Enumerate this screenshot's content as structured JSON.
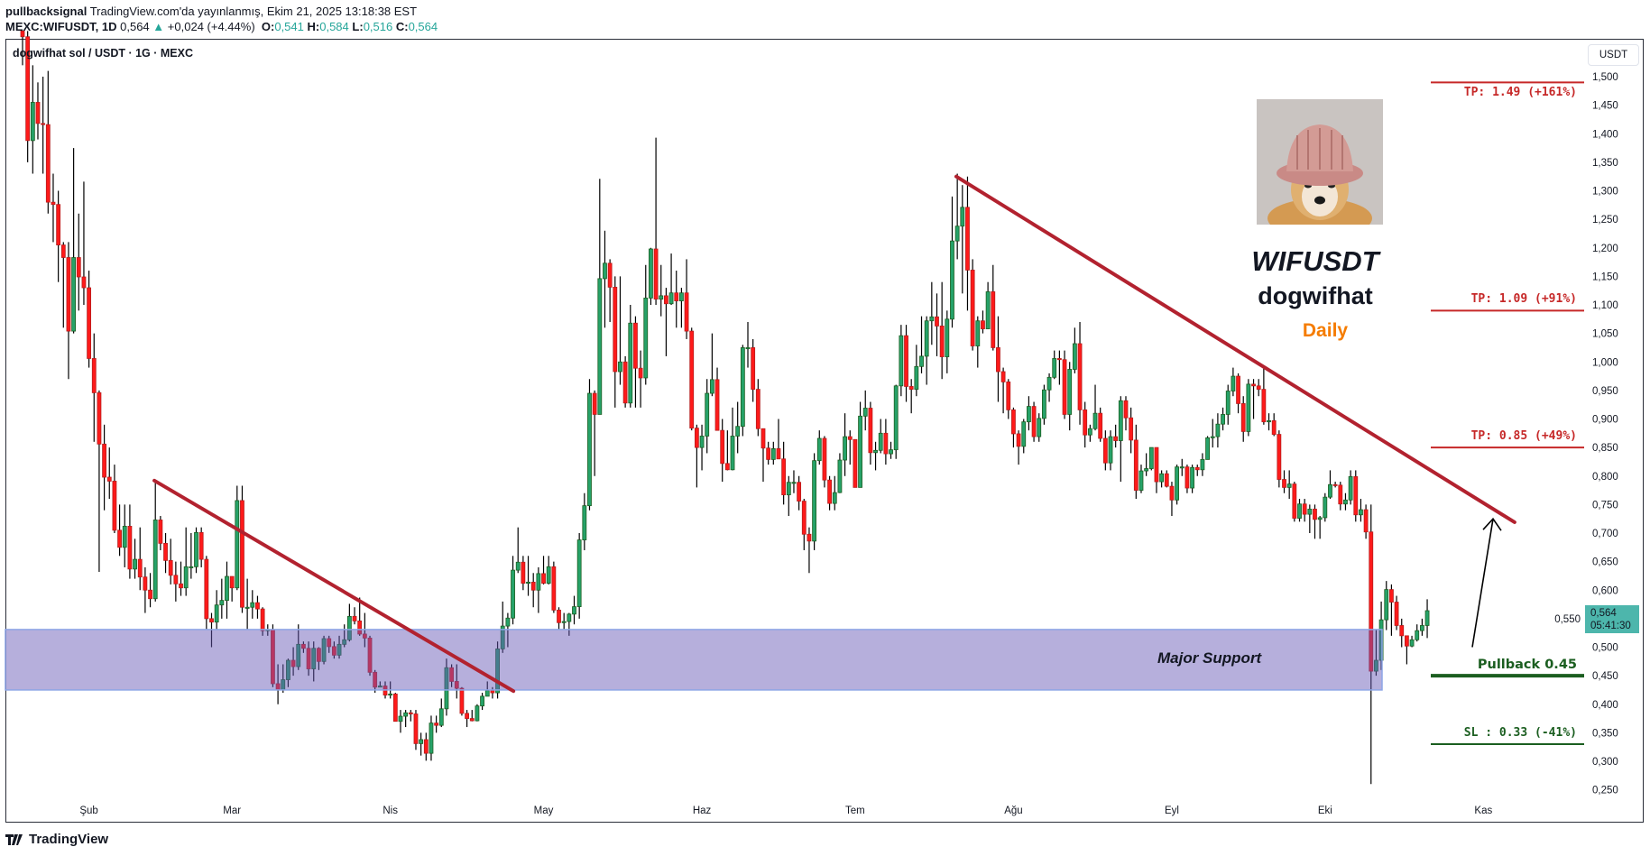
{
  "header": {
    "author": "pullbacksignal",
    "published": "TradingView.com'da yayınlanmış, Ekim 21, 2025 13:18:38 EST",
    "symbol": "MEXC:WIFUSDT, 1D",
    "last": "0,564",
    "change_icon": "triangle-up-icon",
    "change": "+0,024 (+4.44%)",
    "o_label": "O:",
    "o": "0,541",
    "h_label": "H:",
    "h": "0,584",
    "l_label": "L:",
    "l": "0,516",
    "c_label": "C:",
    "c": "0,564"
  },
  "chart_title": "dogwifhat sol / USDT · 1G · MEXC",
  "currency_button": "USDT",
  "price_tag": {
    "price": "0,564",
    "countdown": "05:41:30",
    "color": "#4db6ac"
  },
  "overlay": {
    "ticker": "WIFUSDT",
    "coin": "dogwifhat",
    "timeframe": "Daily",
    "timeframe_color": "#f57c00",
    "image": "dogwifhat-dog-in-pink-hat"
  },
  "support_zone": {
    "label": "Major Support",
    "low": 0.425,
    "high": 0.531,
    "color": "#b5aed8",
    "border": "#8ea6e6"
  },
  "levels": [
    {
      "label": "TP: 1.49 (+161%)",
      "price": 1.49,
      "color": "#c62828",
      "text_pos": "below"
    },
    {
      "label": "TP: 1.09 (+91%)",
      "price": 1.09,
      "color": "#c62828",
      "text_pos": "above"
    },
    {
      "label": "TP: 0.85 (+49%)",
      "price": 0.85,
      "color": "#c62828",
      "text_pos": "above"
    },
    {
      "label": "Pullback 0.45",
      "price": 0.45,
      "color": "#1b5e20",
      "text_pos": "above"
    },
    {
      "label": "SL : 0.33 (-41%)",
      "price": 0.33,
      "color": "#1b5e20",
      "text_pos": "above"
    }
  ],
  "trendlines": [
    {
      "start_price": 0.792,
      "end_price": 0.423,
      "color": "#b2222f"
    },
    {
      "start_price": 1.325,
      "end_price": 0.719,
      "color": "#b2222f"
    }
  ],
  "arrow": {
    "from_price": 0.5,
    "to_price": 0.725,
    "color": "#000000"
  },
  "chart_data": {
    "type": "candlestick",
    "title": "dogwifhat sol / USDT · 1G · MEXC",
    "up_color": "#26a269",
    "up_border": "#1b5e20",
    "down_color": "#ff1a1a",
    "down_border": "#b71c1c",
    "wick_color": "#000000",
    "ylim": [
      0.235,
      1.566
    ],
    "grid": false,
    "price_axis": {
      "labels": [
        "1,500",
        "1,450",
        "1,400",
        "1,350",
        "1,300",
        "1,250",
        "1,200",
        "1,150",
        "1,100",
        "1,050",
        "1,000",
        "0,950",
        "0,900",
        "0,850",
        "0,800",
        "0,750",
        "0,700",
        "0,650",
        "0,600",
        "0,550",
        "0,500",
        "0,450",
        "0,400",
        "0,350",
        "0,300",
        "0,250"
      ]
    },
    "time_axis": {
      "labels": [
        "Şub",
        "Mar",
        "Nis",
        "May",
        "Haz",
        "Tem",
        "Ağu",
        "Eyl",
        "Eki",
        "Kas"
      ]
    },
    "first_open": 1.62,
    "close": [
      1.57,
      1.388,
      1.455,
      1.418,
      1.416,
      1.28,
      1.276,
      1.205,
      1.183,
      1.054,
      1.183,
      1.149,
      1.13,
      1.006,
      0.946,
      0.856,
      0.798,
      0.791,
      0.705,
      0.675,
      0.712,
      0.637,
      0.654,
      0.623,
      0.6,
      0.585,
      0.723,
      0.682,
      0.652,
      0.626,
      0.611,
      0.604,
      0.641,
      0.641,
      0.701,
      0.654,
      0.55,
      0.544,
      0.574,
      0.582,
      0.624,
      0.604,
      0.757,
      0.57,
      0.57,
      0.578,
      0.567,
      0.529,
      0.531,
      0.436,
      0.425,
      0.443,
      0.477,
      0.466,
      0.505,
      0.498,
      0.462,
      0.498,
      0.475,
      0.515,
      0.501,
      0.486,
      0.505,
      0.513,
      0.554,
      0.546,
      0.523,
      0.516,
      0.456,
      0.43,
      0.432,
      0.416,
      0.418,
      0.37,
      0.379,
      0.385,
      0.383,
      0.331,
      0.338,
      0.314,
      0.367,
      0.363,
      0.392,
      0.464,
      0.44,
      0.428,
      0.384,
      0.375,
      0.371,
      0.397,
      0.414,
      0.424,
      0.42,
      0.497,
      0.537,
      0.551,
      0.635,
      0.649,
      0.612,
      0.614,
      0.6,
      0.629,
      0.612,
      0.641,
      0.565,
      0.543,
      0.545,
      0.558,
      0.571,
      0.688,
      0.748,
      0.945,
      0.908,
      1.146,
      1.173,
      1.131,
      0.983,
      1.0,
      0.928,
      1.068,
      0.989,
      0.972,
      1.112,
      1.198,
      1.11,
      1.116,
      1.102,
      1.121,
      1.107,
      1.121,
      1.054,
      0.884,
      0.85,
      0.87,
      0.945,
      0.969,
      0.88,
      0.822,
      0.811,
      0.87,
      0.887,
      1.025,
      1.025,
      0.952,
      0.883,
      0.849,
      0.829,
      0.848,
      0.83,
      0.767,
      0.789,
      0.789,
      0.756,
      0.698,
      0.686,
      0.827,
      0.866,
      0.793,
      0.752,
      0.771,
      0.828,
      0.869,
      0.864,
      0.78,
      0.905,
      0.919,
      0.841,
      0.845,
      0.875,
      0.839,
      0.846,
      0.958,
      1.046,
      0.957,
      0.952,
      0.992,
      1.01,
      1.072,
      1.079,
      1.063,
      1.009,
      1.075,
      1.212,
      1.238,
      1.271,
      1.161,
      1.028,
      1.072,
      1.058,
      1.123,
      1.025,
      0.983,
      0.965,
      0.916,
      0.874,
      0.852,
      0.895,
      0.922,
      0.869,
      0.901,
      0.951,
      0.973,
      1.006,
      1.004,
      0.908,
      0.987,
      1.032,
      0.916,
      0.872,
      0.883,
      0.91,
      0.866,
      0.823,
      0.869,
      0.862,
      0.932,
      0.902,
      0.863,
      0.775,
      0.809,
      0.813,
      0.85,
      0.79,
      0.804,
      0.782,
      0.758,
      0.816,
      0.816,
      0.779,
      0.815,
      0.811,
      0.829,
      0.867,
      0.869,
      0.891,
      0.908,
      0.949,
      0.975,
      0.927,
      0.878,
      0.961,
      0.958,
      0.952,
      0.895,
      0.897,
      0.873,
      0.794,
      0.78,
      0.786,
      0.726,
      0.751,
      0.733,
      0.742,
      0.724,
      0.727,
      0.763,
      0.785,
      0.784,
      0.751,
      0.758,
      0.799,
      0.732,
      0.741,
      0.702,
      0.458,
      0.477,
      0.548,
      0.601,
      0.579,
      0.538,
      0.52,
      0.502,
      0.513,
      0.529,
      0.538,
      0.564
    ],
    "high": [
      1.76,
      1.6,
      1.52,
      1.49,
      1.5,
      1.51,
      1.33,
      1.3,
      1.21,
      1.21,
      1.375,
      1.26,
      1.316,
      1.16,
      1.05,
      0.95,
      0.89,
      0.85,
      0.82,
      0.75,
      0.75,
      0.75,
      0.69,
      0.71,
      0.64,
      0.63,
      0.794,
      0.73,
      0.7,
      0.69,
      0.65,
      0.65,
      0.71,
      0.7,
      0.71,
      0.71,
      0.66,
      0.56,
      0.6,
      0.62,
      0.65,
      0.62,
      0.783,
      0.783,
      0.62,
      0.6,
      0.59,
      0.57,
      0.54,
      0.54,
      0.47,
      0.47,
      0.48,
      0.5,
      0.54,
      0.51,
      0.51,
      0.51,
      0.5,
      0.52,
      0.52,
      0.51,
      0.52,
      0.54,
      0.576,
      0.57,
      0.587,
      0.56,
      0.52,
      0.46,
      0.44,
      0.44,
      0.44,
      0.42,
      0.39,
      0.39,
      0.39,
      0.39,
      0.35,
      0.35,
      0.38,
      0.38,
      0.41,
      0.48,
      0.47,
      0.47,
      0.43,
      0.39,
      0.39,
      0.4,
      0.42,
      0.44,
      0.43,
      0.51,
      0.58,
      0.56,
      0.66,
      0.71,
      0.66,
      0.66,
      0.63,
      0.64,
      0.66,
      0.66,
      0.65,
      0.57,
      0.56,
      0.56,
      0.59,
      0.7,
      0.77,
      0.97,
      0.95,
      1.321,
      1.23,
      1.18,
      1.15,
      1.15,
      1.01,
      1.1,
      1.08,
      1.02,
      1.17,
      1.2,
      1.393,
      1.17,
      1.13,
      1.19,
      1.16,
      1.13,
      1.18,
      1.06,
      0.89,
      0.89,
      0.97,
      1.05,
      0.99,
      0.9,
      0.88,
      0.92,
      0.93,
      1.03,
      1.07,
      1.04,
      0.97,
      0.88,
      0.86,
      0.86,
      0.9,
      0.86,
      0.8,
      0.81,
      0.8,
      0.76,
      0.71,
      0.84,
      0.88,
      0.87,
      0.8,
      0.8,
      0.84,
      0.91,
      0.88,
      0.86,
      0.93,
      0.95,
      0.93,
      0.86,
      0.9,
      0.9,
      0.86,
      0.96,
      1.065,
      1.065,
      0.97,
      1.03,
      1.08,
      1.08,
      1.14,
      1.12,
      1.14,
      1.09,
      1.29,
      1.33,
      1.31,
      1.325,
      1.18,
      1.08,
      1.09,
      1.14,
      1.17,
      1.08,
      0.99,
      0.97,
      0.92,
      0.88,
      0.9,
      0.94,
      0.93,
      0.91,
      0.96,
      0.98,
      1.02,
      1.02,
      1.02,
      1.0,
      1.06,
      1.07,
      0.93,
      0.89,
      0.96,
      0.92,
      0.88,
      0.88,
      0.89,
      0.94,
      0.94,
      0.92,
      0.89,
      0.82,
      0.84,
      0.85,
      0.85,
      0.81,
      0.81,
      0.79,
      0.82,
      0.83,
      0.82,
      0.82,
      0.82,
      0.84,
      0.87,
      0.9,
      0.91,
      0.92,
      0.96,
      0.99,
      0.98,
      0.94,
      0.97,
      0.97,
      0.97,
      0.99,
      0.91,
      0.91,
      0.88,
      0.81,
      0.81,
      0.79,
      0.76,
      0.76,
      0.75,
      0.75,
      0.73,
      0.77,
      0.81,
      0.79,
      0.79,
      0.77,
      0.81,
      0.81,
      0.76,
      0.75,
      0.75,
      0.53,
      0.58,
      0.616,
      0.61,
      0.59,
      0.55,
      0.52,
      0.52,
      0.54,
      0.55,
      0.584
    ],
    "low": [
      1.52,
      1.35,
      1.33,
      1.39,
      1.33,
      1.26,
      1.21,
      1.14,
      1.06,
      0.97,
      1.05,
      1.09,
      1.1,
      0.99,
      0.86,
      0.632,
      0.74,
      0.76,
      0.7,
      0.66,
      0.64,
      0.62,
      0.62,
      0.6,
      0.56,
      0.57,
      0.58,
      0.67,
      0.63,
      0.61,
      0.58,
      0.59,
      0.59,
      0.62,
      0.63,
      0.64,
      0.53,
      0.5,
      0.53,
      0.55,
      0.55,
      0.58,
      0.6,
      0.56,
      0.53,
      0.55,
      0.55,
      0.52,
      0.52,
      0.43,
      0.4,
      0.42,
      0.43,
      0.45,
      0.46,
      0.49,
      0.45,
      0.44,
      0.46,
      0.47,
      0.49,
      0.48,
      0.48,
      0.5,
      0.51,
      0.54,
      0.52,
      0.5,
      0.45,
      0.42,
      0.43,
      0.41,
      0.41,
      0.37,
      0.35,
      0.36,
      0.37,
      0.32,
      0.31,
      0.301,
      0.301,
      0.35,
      0.36,
      0.38,
      0.43,
      0.41,
      0.38,
      0.36,
      0.37,
      0.37,
      0.39,
      0.42,
      0.41,
      0.41,
      0.49,
      0.5,
      0.54,
      0.63,
      0.6,
      0.59,
      0.57,
      0.56,
      0.61,
      0.61,
      0.56,
      0.53,
      0.53,
      0.52,
      0.54,
      0.55,
      0.67,
      0.74,
      0.8,
      0.91,
      1.06,
      1.07,
      0.92,
      0.96,
      0.92,
      0.92,
      0.92,
      0.92,
      0.96,
      1.1,
      1.1,
      1.08,
      1.01,
      1.1,
      1.06,
      1.06,
      1.04,
      0.88,
      0.78,
      0.81,
      0.84,
      0.94,
      0.88,
      0.79,
      0.81,
      0.81,
      0.84,
      0.87,
      0.99,
      0.93,
      0.87,
      0.79,
      0.82,
      0.82,
      0.83,
      0.75,
      0.73,
      0.77,
      0.74,
      0.67,
      0.63,
      0.67,
      0.82,
      0.78,
      0.74,
      0.74,
      0.77,
      0.8,
      0.82,
      0.78,
      0.78,
      0.88,
      0.82,
      0.81,
      0.84,
      0.82,
      0.83,
      0.83,
      0.94,
      0.93,
      0.91,
      0.94,
      0.98,
      0.96,
      1.03,
      1.01,
      0.97,
      0.98,
      1.06,
      1.18,
      1.12,
      1.09,
      1.02,
      0.99,
      1.05,
      1.06,
      1.02,
      0.93,
      0.91,
      0.9,
      0.85,
      0.82,
      0.84,
      0.88,
      0.86,
      0.86,
      0.89,
      0.93,
      0.97,
      0.96,
      0.9,
      0.88,
      0.98,
      0.89,
      0.85,
      0.86,
      0.88,
      0.86,
      0.81,
      0.81,
      0.85,
      0.79,
      0.88,
      0.84,
      0.76,
      0.77,
      0.8,
      0.81,
      0.77,
      0.78,
      0.78,
      0.73,
      0.75,
      0.8,
      0.77,
      0.77,
      0.8,
      0.8,
      0.83,
      0.85,
      0.85,
      0.88,
      0.89,
      0.94,
      0.91,
      0.86,
      0.87,
      0.9,
      0.94,
      0.89,
      0.88,
      0.87,
      0.78,
      0.77,
      0.76,
      0.72,
      0.72,
      0.72,
      0.7,
      0.69,
      0.69,
      0.72,
      0.76,
      0.78,
      0.74,
      0.74,
      0.75,
      0.72,
      0.72,
      0.69,
      0.26,
      0.45,
      0.46,
      0.53,
      0.52,
      0.53,
      0.5,
      0.47,
      0.5,
      0.51,
      0.52,
      0.516
    ]
  },
  "footer": {
    "logo_text": "TradingView"
  }
}
